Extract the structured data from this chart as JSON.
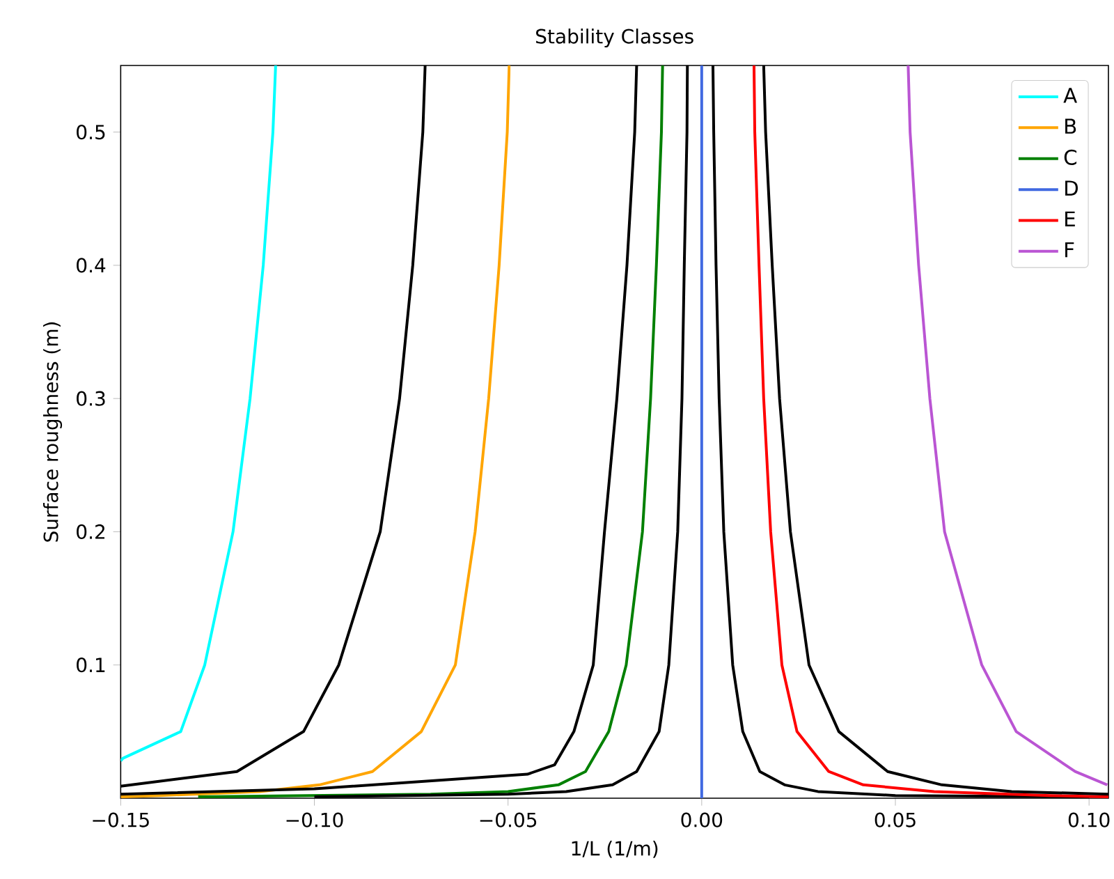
{
  "chart_data": {
    "type": "line",
    "title": "Stability Classes",
    "xlabel": "1/L (1/m)",
    "ylabel": "Surface roughness (m)",
    "xlim": [
      -0.15,
      0.105
    ],
    "ylim": [
      0,
      0.55
    ],
    "xticks": [
      {
        "value": -0.15,
        "label": "−0.15"
      },
      {
        "value": -0.1,
        "label": "−0.10"
      },
      {
        "value": -0.05,
        "label": "−0.05"
      },
      {
        "value": 0,
        "label": "0.00"
      },
      {
        "value": 0.05,
        "label": "0.05"
      },
      {
        "value": 0.1,
        "label": "0.10"
      }
    ],
    "yticks": [
      0.1,
      0.2,
      0.3,
      0.4,
      0.5
    ],
    "grid": false,
    "legend": "top right",
    "marker": "none",
    "line_style": "solid",
    "series": [
      {
        "name": "A",
        "color": "#00ffff",
        "x": [
          -0.15,
          -0.1494,
          -0.1345,
          -0.1283,
          -0.121,
          -0.1166,
          -0.1132,
          -0.1107,
          -0.11
        ],
        "values": [
          0.028,
          0.03,
          0.05,
          0.1,
          0.2,
          0.3,
          0.4,
          0.5,
          0.55
        ]
      },
      {
        "color": "#000000",
        "x": [
          -0.15,
          -0.12,
          -0.1028,
          -0.0937,
          -0.083,
          -0.078,
          -0.0746,
          -0.072,
          -0.0714
        ],
        "values": [
          0.009,
          0.02,
          0.05,
          0.1,
          0.2,
          0.3,
          0.4,
          0.5,
          0.55
        ]
      },
      {
        "name": "B",
        "color": "#ffa500",
        "x": [
          -0.15,
          -0.14,
          -0.114,
          -0.0987,
          -0.085,
          -0.0724,
          -0.0636,
          -0.0585,
          -0.055,
          -0.0523,
          -0.0502,
          -0.0497
        ],
        "values": [
          0.001,
          0.002,
          0.005,
          0.01,
          0.02,
          0.05,
          0.1,
          0.2,
          0.3,
          0.4,
          0.5,
          0.55
        ]
      },
      {
        "color": "#000000",
        "x": [
          -0.15,
          -0.1,
          -0.045,
          -0.038,
          -0.033,
          -0.028,
          -0.0251,
          -0.0219,
          -0.0193,
          -0.0173,
          -0.0168
        ],
        "values": [
          0.003,
          0.007,
          0.018,
          0.025,
          0.05,
          0.1,
          0.2,
          0.3,
          0.4,
          0.5,
          0.55
        ]
      },
      {
        "name": "C",
        "color": "#008000",
        "x": [
          -0.13,
          -0.1,
          -0.07,
          -0.05,
          -0.037,
          -0.03,
          -0.024,
          -0.0195,
          -0.0153,
          -0.0132,
          -0.0117,
          -0.0104,
          -0.0101
        ],
        "values": [
          0.001,
          0.002,
          0.003,
          0.005,
          0.01,
          0.02,
          0.05,
          0.1,
          0.2,
          0.3,
          0.4,
          0.5,
          0.55
        ]
      },
      {
        "color": "#000000",
        "x": [
          -0.1,
          -0.05,
          -0.035,
          -0.023,
          -0.0168,
          -0.011,
          -0.0085,
          -0.0062,
          -0.0051,
          -0.0045,
          -0.0038,
          -0.0037
        ],
        "values": [
          0.001,
          0.003,
          0.005,
          0.01,
          0.02,
          0.05,
          0.1,
          0.2,
          0.3,
          0.4,
          0.5,
          0.55
        ]
      },
      {
        "name": "D",
        "color": "#4169e1",
        "x": [
          0,
          0
        ],
        "values": [
          0,
          0.55
        ]
      },
      {
        "color": "#000000",
        "x": [
          0.1,
          0.05,
          0.03,
          0.0214,
          0.015,
          0.0106,
          0.008,
          0.0057,
          0.0045,
          0.0037,
          0.0031,
          0.0029
        ],
        "values": [
          0.001,
          0.002,
          0.005,
          0.01,
          0.02,
          0.05,
          0.1,
          0.2,
          0.3,
          0.4,
          0.5,
          0.55
        ]
      },
      {
        "name": "E",
        "color": "#ff0000",
        "x": [
          0.105,
          0.09,
          0.06,
          0.0417,
          0.0328,
          0.0246,
          0.0207,
          0.0178,
          0.016,
          0.0148,
          0.0137,
          0.0135
        ],
        "values": [
          0.001,
          0.002,
          0.005,
          0.01,
          0.02,
          0.05,
          0.1,
          0.2,
          0.3,
          0.4,
          0.5,
          0.55
        ]
      },
      {
        "color": "#000000",
        "x": [
          0.105,
          0.08,
          0.062,
          0.048,
          0.0354,
          0.0277,
          0.0229,
          0.0201,
          0.0182,
          0.0165,
          0.016
        ],
        "values": [
          0.003,
          0.005,
          0.01,
          0.02,
          0.05,
          0.1,
          0.2,
          0.3,
          0.4,
          0.5,
          0.55
        ]
      },
      {
        "name": "F",
        "color": "#ba55d3",
        "x": [
          0.1047,
          0.0964,
          0.0812,
          0.0723,
          0.0627,
          0.0589,
          0.056,
          0.0538,
          0.0533
        ],
        "values": [
          0.01,
          0.02,
          0.05,
          0.1,
          0.2,
          0.3,
          0.4,
          0.5,
          0.55
        ]
      }
    ]
  }
}
